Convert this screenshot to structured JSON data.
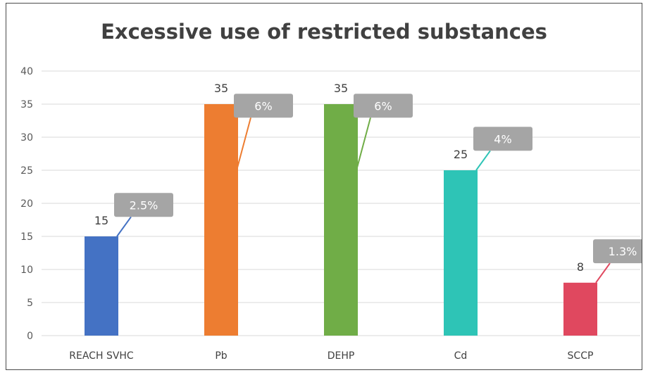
{
  "chart_data": {
    "type": "bar",
    "title": "Excessive use of restricted substances",
    "xlabel": "",
    "ylabel": "",
    "ylim": [
      0,
      40
    ],
    "yticks": [
      0,
      5,
      10,
      15,
      20,
      25,
      30,
      35,
      40
    ],
    "grid": true,
    "legend": "none",
    "categories": [
      "REACH SVHC",
      "Pb",
      "DEHP",
      "Cd",
      "SCCP"
    ],
    "values": [
      15,
      35,
      35,
      25,
      8
    ],
    "percent_labels": [
      "2.5%",
      "6%",
      "6%",
      "4%",
      "1.3%"
    ],
    "colors": [
      "#4472c4",
      "#ed7d31",
      "#70ad47",
      "#2ec4b6",
      "#e0485f"
    ],
    "label_box_color": "#a5a5a5"
  }
}
